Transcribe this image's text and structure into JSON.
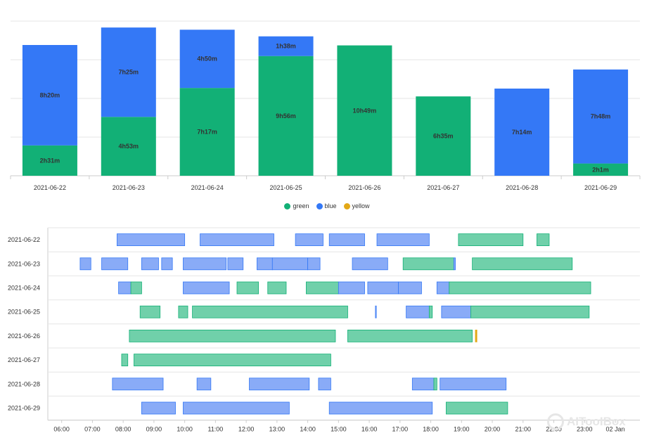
{
  "colors": {
    "green": "#12b076",
    "blue": "#3478f6",
    "yellow": "#e3a817",
    "green_light": "#70d0aa",
    "blue_light": "#89abf7"
  },
  "legend": [
    {
      "name": "green",
      "color": "#12b076"
    },
    {
      "name": "blue",
      "color": "#3478f6"
    },
    {
      "name": "yellow",
      "color": "#e3a817"
    }
  ],
  "watermark": {
    "text": "AITooIBox"
  },
  "chart_data": [
    {
      "type": "bar",
      "stacked": true,
      "categories": [
        "2021-06-22",
        "2021-06-23",
        "2021-06-24",
        "2021-06-25",
        "2021-06-26",
        "2021-06-27",
        "2021-06-28",
        "2021-06-29"
      ],
      "series": [
        {
          "name": "green",
          "values_minutes": [
            151,
            293,
            437,
            596,
            649,
            395,
            0,
            61
          ],
          "labels": [
            "2h31m",
            "4h53m",
            "7h17m",
            "9h56m",
            "10h49m",
            "6h35m",
            "",
            "2h1m"
          ]
        },
        {
          "name": "blue",
          "values_minutes": [
            500,
            445,
            290,
            98,
            0,
            0,
            434,
            468
          ],
          "labels": [
            "8h20m",
            "7h25m",
            "4h50m",
            "1h38m",
            "",
            "",
            "7h14m",
            "7h48m"
          ]
        }
      ],
      "grid": true,
      "legend_position": "bottom"
    },
    {
      "type": "timeline",
      "categories": [
        "2021-06-22",
        "2021-06-23",
        "2021-06-24",
        "2021-06-25",
        "2021-06-26",
        "2021-06-27",
        "2021-06-28",
        "2021-06-29"
      ],
      "x_ticks": [
        "06:00",
        "07:00",
        "08:00",
        "09:00",
        "10:00",
        "11:00",
        "12:00",
        "13:00",
        "14:00",
        "15:00",
        "16:00",
        "17:00",
        "18:00",
        "19:00",
        "20:00",
        "21:00",
        "22:00",
        "23:00",
        "02 Jan"
      ],
      "x_range_hours": [
        5.55,
        24.8
      ],
      "segments": {
        "2021-06-22": [
          {
            "s": 7.8,
            "e": 10.0,
            "c": "blue"
          },
          {
            "s": 10.5,
            "e": 12.9,
            "c": "blue"
          },
          {
            "s": 13.6,
            "e": 14.5,
            "c": "blue"
          },
          {
            "s": 14.7,
            "e": 15.85,
            "c": "blue"
          },
          {
            "s": 16.25,
            "e": 17.95,
            "c": "blue"
          },
          {
            "s": 18.9,
            "e": 21.0,
            "c": "green"
          },
          {
            "s": 21.45,
            "e": 21.85,
            "c": "green"
          }
        ],
        "2021-06-23": [
          {
            "s": 6.6,
            "e": 6.95,
            "c": "blue"
          },
          {
            "s": 7.3,
            "e": 8.15,
            "c": "blue"
          },
          {
            "s": 8.6,
            "e": 9.15,
            "c": "blue"
          },
          {
            "s": 9.25,
            "e": 9.6,
            "c": "blue"
          },
          {
            "s": 9.95,
            "e": 11.35,
            "c": "blue"
          },
          {
            "s": 11.4,
            "e": 11.9,
            "c": "blue"
          },
          {
            "s": 12.35,
            "e": 12.85,
            "c": "blue"
          },
          {
            "s": 12.85,
            "e": 14.0,
            "c": "blue"
          },
          {
            "s": 14.0,
            "e": 14.4,
            "c": "blue"
          },
          {
            "s": 15.45,
            "e": 16.6,
            "c": "blue"
          },
          {
            "s": 17.1,
            "e": 18.75,
            "c": "green"
          },
          {
            "s": 18.75,
            "e": 18.8,
            "c": "blue"
          },
          {
            "s": 19.35,
            "e": 22.6,
            "c": "green"
          }
        ],
        "2021-06-24": [
          {
            "s": 7.85,
            "e": 8.25,
            "c": "blue"
          },
          {
            "s": 8.25,
            "e": 8.6,
            "c": "green"
          },
          {
            "s": 9.95,
            "e": 11.45,
            "c": "blue"
          },
          {
            "s": 11.7,
            "e": 12.4,
            "c": "green"
          },
          {
            "s": 12.7,
            "e": 13.3,
            "c": "green"
          },
          {
            "s": 13.95,
            "e": 15.0,
            "c": "green"
          },
          {
            "s": 15.0,
            "e": 15.85,
            "c": "blue"
          },
          {
            "s": 15.95,
            "e": 16.95,
            "c": "blue"
          },
          {
            "s": 16.95,
            "e": 17.7,
            "c": "blue"
          },
          {
            "s": 18.2,
            "e": 18.6,
            "c": "blue"
          },
          {
            "s": 18.6,
            "e": 23.2,
            "c": "green"
          }
        ],
        "2021-06-25": [
          {
            "s": 8.55,
            "e": 9.2,
            "c": "green"
          },
          {
            "s": 9.8,
            "e": 10.1,
            "c": "green"
          },
          {
            "s": 10.25,
            "e": 15.3,
            "c": "green"
          },
          {
            "s": 16.2,
            "e": 16.23,
            "c": "blue"
          },
          {
            "s": 17.2,
            "e": 17.95,
            "c": "blue"
          },
          {
            "s": 17.95,
            "e": 18.05,
            "c": "green"
          },
          {
            "s": 18.35,
            "e": 19.3,
            "c": "blue"
          },
          {
            "s": 19.3,
            "e": 23.15,
            "c": "green"
          }
        ],
        "2021-06-26": [
          {
            "s": 8.2,
            "e": 14.9,
            "c": "green"
          },
          {
            "s": 15.3,
            "e": 19.35,
            "c": "green"
          },
          {
            "s": 19.45,
            "e": 19.5,
            "c": "yellow"
          }
        ],
        "2021-06-27": [
          {
            "s": 7.95,
            "e": 8.15,
            "c": "green"
          },
          {
            "s": 8.35,
            "e": 14.75,
            "c": "green"
          }
        ],
        "2021-06-28": [
          {
            "s": 7.65,
            "e": 9.3,
            "c": "blue"
          },
          {
            "s": 10.4,
            "e": 10.85,
            "c": "blue"
          },
          {
            "s": 12.1,
            "e": 14.05,
            "c": "blue"
          },
          {
            "s": 14.35,
            "e": 14.75,
            "c": "blue"
          },
          {
            "s": 17.4,
            "e": 18.1,
            "c": "blue"
          },
          {
            "s": 18.1,
            "e": 18.2,
            "c": "green"
          },
          {
            "s": 18.3,
            "e": 20.45,
            "c": "blue"
          }
        ],
        "2021-06-29": [
          {
            "s": 8.6,
            "e": 9.7,
            "c": "blue"
          },
          {
            "s": 9.95,
            "e": 13.4,
            "c": "blue"
          },
          {
            "s": 14.7,
            "e": 18.05,
            "c": "blue"
          },
          {
            "s": 18.5,
            "e": 20.5,
            "c": "green"
          }
        ]
      }
    }
  ]
}
